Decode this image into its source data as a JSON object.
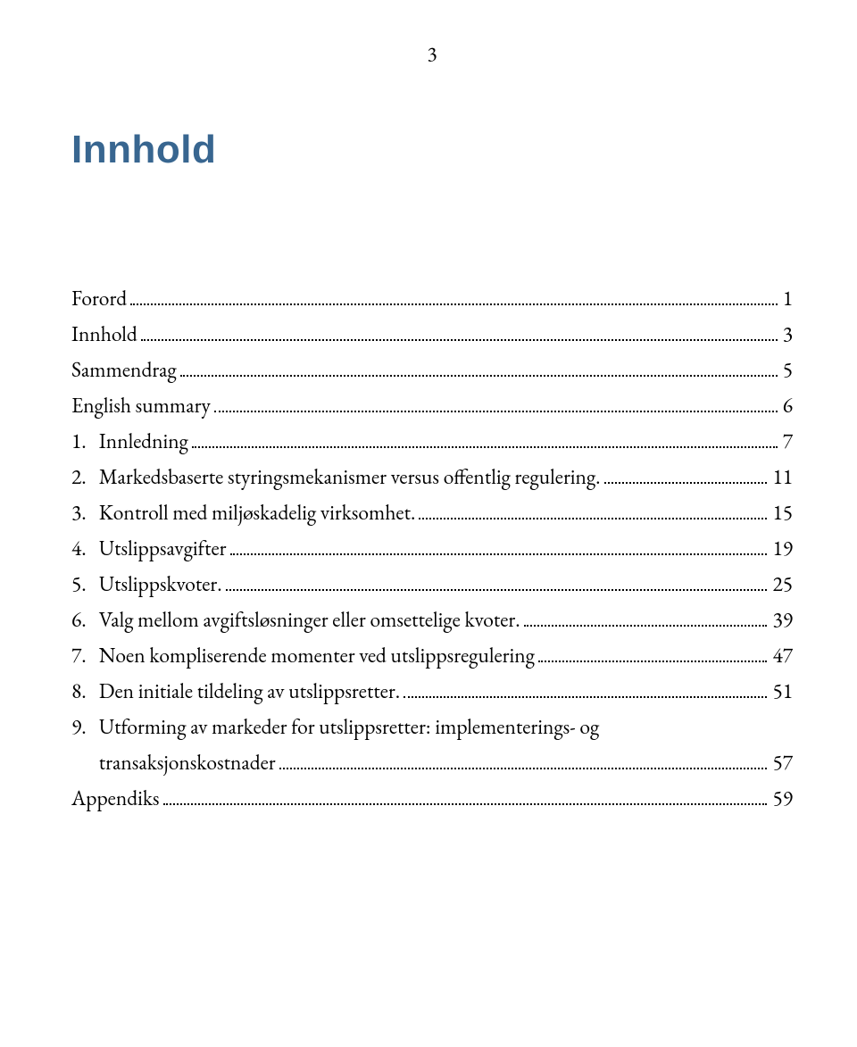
{
  "page_number": "3",
  "heading": "Innhold",
  "heading_color": "#386690",
  "toc": [
    {
      "num": "",
      "label": "Forord",
      "page": "1"
    },
    {
      "num": "",
      "label": "Innhold",
      "page": "3"
    },
    {
      "num": "",
      "label": "Sammendrag",
      "page": "5"
    },
    {
      "num": "",
      "label": "English summary",
      "page": "6"
    },
    {
      "num": "1.",
      "label": "Innledning",
      "page": "7"
    },
    {
      "num": "2.",
      "label": "Markedsbaserte styringsmekanismer versus offentlig regulering.",
      "page": "11"
    },
    {
      "num": "3.",
      "label": "Kontroll med miljøskadelig virksomhet.",
      "page": "15"
    },
    {
      "num": "4.",
      "label": "Utslippsavgifter",
      "page": "19"
    },
    {
      "num": "5.",
      "label": "Utslippskvoter.",
      "page": "25"
    },
    {
      "num": "6.",
      "label": "Valg mellom avgiftsløsninger eller omsettelige kvoter.",
      "page": "39"
    },
    {
      "num": "7.",
      "label": "Noen kompliserende momenter ved utslippsregulering",
      "page": "47"
    },
    {
      "num": "8.",
      "label": "Den initiale tildeling av utslippsretter.",
      "page": "51"
    },
    {
      "num": "9.",
      "label_lines": [
        "Utforming av markeder for utslippsretter: implementerings- og",
        "transaksjonskostnader"
      ],
      "page": "57"
    },
    {
      "num": "",
      "label": "Appendiks",
      "page": "59"
    }
  ]
}
